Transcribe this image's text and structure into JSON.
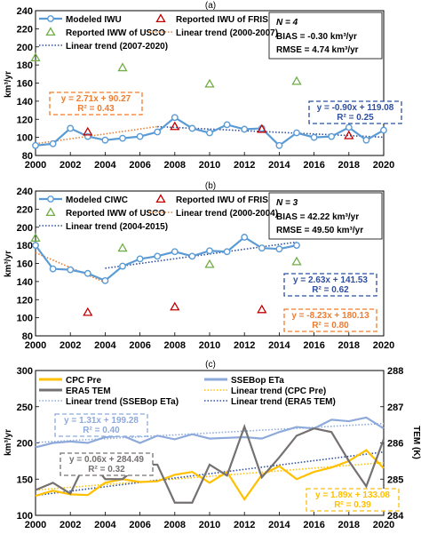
{
  "chart_data": [
    {
      "panel_label": "(a)",
      "type": "line",
      "ylabel": "km³/yr",
      "ylim": [
        80,
        240
      ],
      "yticks": [
        "80",
        "100",
        "120",
        "140",
        "160",
        "180",
        "200",
        "220",
        "240"
      ],
      "xlim": [
        2000,
        2020
      ],
      "xticks": [
        "2000",
        "2002",
        "2004",
        "2006",
        "2008",
        "2010",
        "2012",
        "2014",
        "2016",
        "2018",
        "2020"
      ],
      "legend": [
        {
          "label": "Modeled IWU",
          "kind": "line-circle",
          "color": "#5b9bd5"
        },
        {
          "label": "Reported IWU of FRIS",
          "kind": "triangle",
          "color": "#c00000"
        },
        {
          "label": "Reported IWW of USCO",
          "kind": "triangle",
          "color": "#70ad47"
        },
        {
          "label": "Linear trend (2000-2007)",
          "kind": "dotted",
          "color": "#ed7d31"
        },
        {
          "label": "Linear trend (2007-2020)",
          "kind": "dotted",
          "color": "#2f4f9f"
        }
      ],
      "stats": {
        "n_label": "N = 4",
        "bias": "BIAS = -0.30 km³/yr",
        "rmse": "RMSE = 4.74 km³/yr"
      },
      "series": [
        {
          "name": "Modeled IWU",
          "x": [
            2000,
            2001,
            2002,
            2003,
            2004,
            2005,
            2006,
            2007,
            2008,
            2009,
            2010,
            2011,
            2012,
            2013,
            2014,
            2015,
            2016,
            2017,
            2018,
            2019,
            2020
          ],
          "values": [
            91,
            93,
            110,
            101,
            97,
            99,
            101,
            106,
            122,
            110,
            105,
            114,
            109,
            110,
            91,
            105,
            100,
            101,
            111,
            97,
            108
          ]
        },
        {
          "name": "Reported IWU of FRIS",
          "x": [
            2003,
            2008,
            2013,
            2018
          ],
          "values": [
            106,
            112,
            109,
            102
          ]
        },
        {
          "name": "Reported IWW of USCO",
          "x": [
            2000,
            2005,
            2010,
            2015
          ],
          "values": [
            188,
            177,
            159,
            162
          ]
        }
      ],
      "trends": [
        {
          "color": "#ed7d31",
          "slope": 2.71,
          "intercept": 90.27,
          "from": 0,
          "to": 7
        },
        {
          "color": "#2f4f9f",
          "slope": -0.9,
          "intercept": 119.08,
          "from": 7,
          "to": 20
        }
      ],
      "eq_boxes": [
        {
          "line1": "y = 2.71x + 90.27",
          "line2": "R² = 0.43",
          "color": "#ed7d31",
          "side": "left"
        },
        {
          "line1": "y = -0.90x + 119.08",
          "line2": "R² = 0.25",
          "color": "#2f4f9f",
          "side": "right"
        }
      ]
    },
    {
      "panel_label": "(b)",
      "type": "line",
      "ylabel": "km³/yr",
      "ylim": [
        80,
        240
      ],
      "yticks": [
        "80",
        "100",
        "120",
        "140",
        "160",
        "180",
        "200",
        "220",
        "240"
      ],
      "xlim": [
        2000,
        2020
      ],
      "xticks": [
        "2000",
        "2002",
        "2004",
        "2006",
        "2008",
        "2010",
        "2012",
        "2014",
        "2016",
        "2018",
        "2020"
      ],
      "legend": [
        {
          "label": "Modeled CIWC",
          "kind": "line-circle",
          "color": "#5b9bd5"
        },
        {
          "label": "Reported IWU of FRIS",
          "kind": "triangle",
          "color": "#c00000"
        },
        {
          "label": "Reported IWW of USCO",
          "kind": "triangle",
          "color": "#70ad47"
        },
        {
          "label": "Linear trend (2000-2004)",
          "kind": "dotted",
          "color": "#ed7d31"
        },
        {
          "label": "Linear trend (2004-2015)",
          "kind": "dotted",
          "color": "#2f4f9f"
        }
      ],
      "stats": {
        "n_label": "N = 3",
        "bias": "BIAS = 42.22 km³/yr",
        "rmse": "RMSE = 49.50 km³/yr"
      },
      "series": [
        {
          "name": "Modeled CIWC",
          "x": [
            2000,
            2001,
            2002,
            2003,
            2004,
            2005,
            2006,
            2007,
            2008,
            2009,
            2010,
            2011,
            2012,
            2013,
            2014,
            2015
          ],
          "values": [
            180,
            154,
            153,
            149,
            141,
            157,
            165,
            168,
            173,
            168,
            174,
            173,
            189,
            177,
            176,
            180
          ]
        },
        {
          "name": "Reported IWU of FRIS",
          "x": [
            2003,
            2008,
            2013
          ],
          "values": [
            106,
            112,
            109
          ]
        },
        {
          "name": "Reported IWW of USCO",
          "x": [
            2000,
            2005,
            2010,
            2015
          ],
          "values": [
            188,
            177,
            159,
            162
          ]
        }
      ],
      "trends": [
        {
          "color": "#ed7d31",
          "slope": -8.23,
          "intercept": 180.13,
          "from": 0,
          "to": 4
        },
        {
          "color": "#2f4f9f",
          "slope": 2.63,
          "intercept": 141.53,
          "from": 4,
          "to": 15
        }
      ],
      "eq_boxes": [
        {
          "line1": "y = 2.63x + 141.53",
          "line2": "R² = 0.62",
          "color": "#2f4f9f",
          "side": "right"
        },
        {
          "line1": "y = -8.23x + 180.13",
          "line2": "R² = 0.80",
          "color": "#ed7d31",
          "side": "right"
        }
      ]
    },
    {
      "panel_label": "(c)",
      "type": "line",
      "ylabel": "km³/yr",
      "y2label": "TEM (K)",
      "ylim": [
        100,
        300
      ],
      "yticks": [
        "100",
        "150",
        "200",
        "250",
        "300"
      ],
      "y2lim": [
        284,
        288
      ],
      "y2ticks": [
        "284",
        "285",
        "286",
        "287",
        "288"
      ],
      "xlim": [
        2000,
        2020
      ],
      "xticks": [
        "2000",
        "2002",
        "2004",
        "2006",
        "2008",
        "2010",
        "2012",
        "2014",
        "2016",
        "2018",
        "2020"
      ],
      "legend": [
        {
          "label": "CPC Pre",
          "kind": "thick",
          "color": "#ffc000"
        },
        {
          "label": "SSEBop ETa",
          "kind": "thick",
          "color": "#8eaadb"
        },
        {
          "label": "ERA5 TEM",
          "kind": "thick",
          "color": "#767171"
        },
        {
          "label": "Linear trend (CPC Pre)",
          "kind": "dotted",
          "color": "#ffc000"
        },
        {
          "label": "Linear trend (SSEBop ETa)",
          "kind": "dotted",
          "color": "#8eaadb"
        },
        {
          "label": "Linear trend (ERA5 TEM)",
          "kind": "dotted",
          "color": "#2f4f9f"
        }
      ],
      "series": [
        {
          "name": "CPC Pre",
          "axis": "left",
          "x": [
            2000,
            2001,
            2002,
            2003,
            2004,
            2005,
            2006,
            2007,
            2008,
            2009,
            2010,
            2011,
            2012,
            2013,
            2014,
            2015,
            2016,
            2017,
            2018,
            2019,
            2020
          ],
          "values": [
            127,
            134,
            129,
            128,
            145,
            150,
            146,
            147,
            156,
            160,
            145,
            160,
            122,
            156,
            168,
            150,
            160,
            166,
            175,
            190,
            165
          ]
        },
        {
          "name": "SSEBop ETa",
          "axis": "left",
          "x": [
            2000,
            2001,
            2002,
            2003,
            2004,
            2005,
            2006,
            2007,
            2008,
            2009,
            2010,
            2011,
            2012,
            2013,
            2014,
            2015,
            2016,
            2017,
            2018,
            2019,
            2020
          ],
          "values": [
            194,
            200,
            202,
            200,
            208,
            210,
            200,
            210,
            205,
            212,
            206,
            207,
            208,
            206,
            215,
            222,
            220,
            232,
            230,
            235,
            220
          ]
        },
        {
          "name": "ERA5 TEM",
          "axis": "right",
          "x": [
            2000,
            2001,
            2002,
            2003,
            2004,
            2005,
            2006,
            2007,
            2008,
            2009,
            2010,
            2011,
            2012,
            2013,
            2014,
            2015,
            2016,
            2017,
            2018,
            2019,
            2020
          ],
          "values": [
            284.7,
            284.9,
            284.6,
            285.6,
            285.0,
            285.0,
            285.4,
            285.4,
            284.35,
            284.35,
            285.4,
            285.1,
            286.45,
            285.05,
            285.6,
            286.2,
            286.4,
            286.3,
            285.5,
            284.8,
            286.1
          ]
        }
      ],
      "trends": [
        {
          "color": "#ffc000",
          "axis": "left",
          "slope": 1.89,
          "intercept": 133.08,
          "from": 0,
          "to": 20
        },
        {
          "color": "#8eaadb",
          "axis": "left",
          "slope": 1.31,
          "intercept": 199.28,
          "from": 0,
          "to": 20
        },
        {
          "color": "#2f4f9f",
          "axis": "right",
          "slope": 0.06,
          "intercept": 284.49,
          "from": 0,
          "to": 20
        }
      ],
      "eq_boxes": [
        {
          "line1": "y = 1.31x + 199.28",
          "line2": "R² = 0.40",
          "color": "#8eaadb",
          "side": "left"
        },
        {
          "line1": "y = 0.06x + 284.49",
          "line2": "R² = 0.32",
          "color": "#767171",
          "side": "left"
        },
        {
          "line1": "y = 1.89x + 133.08",
          "line2": "R² = 0.39",
          "color": "#ffc000",
          "side": "right"
        }
      ]
    }
  ]
}
